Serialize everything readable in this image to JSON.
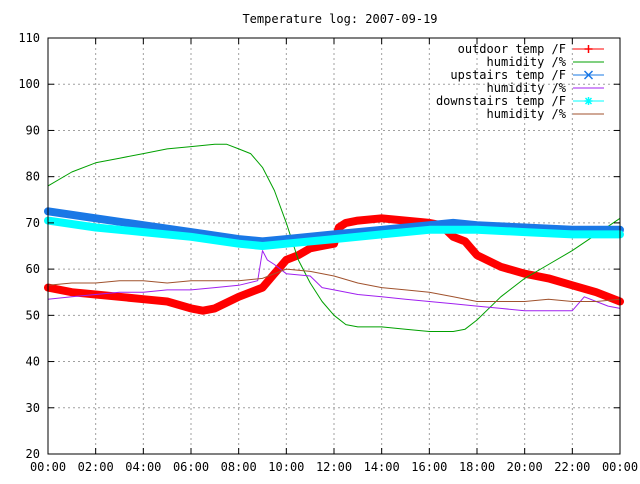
{
  "chart_data": {
    "type": "line",
    "title": "Temperature log: 2007-09-19",
    "xlabel": "",
    "ylabel": "",
    "x_unit": "hours",
    "xlim": [
      0,
      24
    ],
    "ylim": [
      20,
      110
    ],
    "grid": true,
    "legend_position": "top-right",
    "x_ticks": [
      {
        "value": 0,
        "label": "00:00"
      },
      {
        "value": 2,
        "label": "02:00"
      },
      {
        "value": 4,
        "label": "04:00"
      },
      {
        "value": 6,
        "label": "06:00"
      },
      {
        "value": 8,
        "label": "08:00"
      },
      {
        "value": 10,
        "label": "10:00"
      },
      {
        "value": 12,
        "label": "12:00"
      },
      {
        "value": 14,
        "label": "14:00"
      },
      {
        "value": 16,
        "label": "16:00"
      },
      {
        "value": 18,
        "label": "18:00"
      },
      {
        "value": 20,
        "label": "20:00"
      },
      {
        "value": 22,
        "label": "22:00"
      },
      {
        "value": 24,
        "label": "00:00"
      }
    ],
    "y_ticks": [
      20,
      30,
      40,
      50,
      60,
      70,
      80,
      90,
      100,
      110
    ],
    "series": [
      {
        "name": "outdoor temp /F",
        "color": "#ff0000",
        "style": "thick",
        "marker": "plus",
        "x": [
          0,
          1,
          2,
          3,
          4,
          5,
          6,
          6.5,
          7,
          8,
          9,
          9.5,
          10,
          10.5,
          11,
          11.5,
          12,
          12.2,
          12.5,
          13,
          14,
          15,
          16,
          16.5,
          17,
          17.5,
          18,
          19,
          20,
          21,
          22,
          23,
          24
        ],
        "y": [
          56,
          55,
          54.5,
          54,
          53.5,
          53,
          51.5,
          51,
          51.5,
          54,
          56,
          59,
          62,
          63,
          64.5,
          65,
          65.5,
          69,
          70,
          70.5,
          71,
          70.5,
          70,
          69.5,
          67,
          66,
          63,
          60.5,
          59,
          58,
          56.5,
          55,
          53
        ]
      },
      {
        "name": "humidity /%",
        "color": "#00a000",
        "style": "thin",
        "x": [
          0,
          1,
          2,
          3,
          4,
          5,
          6,
          7,
          7.5,
          8,
          8.5,
          9,
          9.5,
          10,
          10.5,
          11,
          11.5,
          12,
          12.5,
          13,
          14,
          15,
          16,
          17,
          17.5,
          18,
          19,
          20,
          21,
          22,
          23,
          24
        ],
        "y": [
          78,
          81,
          83,
          84,
          85,
          86,
          86.5,
          87,
          87,
          86,
          85,
          82,
          77,
          70,
          62,
          57,
          53,
          50,
          48,
          47.5,
          47.5,
          47,
          46.5,
          46.5,
          47,
          49,
          54,
          58,
          61,
          64,
          67.5,
          71
        ]
      },
      {
        "name": "upstairs temp /F",
        "color": "#1a78e6",
        "style": "thick",
        "marker": "x",
        "x": [
          0,
          2,
          4,
          6,
          8,
          9,
          10,
          12,
          14,
          16,
          17,
          18,
          20,
          22,
          24
        ],
        "y": [
          72.5,
          71,
          69.5,
          68,
          66.5,
          66,
          66.5,
          67.5,
          68.5,
          69.5,
          70,
          69.5,
          69,
          68.5,
          68.5
        ]
      },
      {
        "name": "humidity /%",
        "color": "#a020f0",
        "style": "thin",
        "x": [
          0,
          1,
          2,
          3,
          4,
          5,
          6,
          7,
          8,
          8.8,
          9,
          9.2,
          9.5,
          10,
          11,
          11.5,
          12,
          13,
          14,
          15,
          16,
          17,
          18,
          19,
          20,
          21,
          22,
          22.5,
          23,
          23.5,
          24
        ],
        "y": [
          53.5,
          54,
          54.5,
          55,
          55,
          55.5,
          55.5,
          56,
          56.5,
          57.5,
          64,
          62,
          61,
          59,
          58.5,
          56,
          55.5,
          54.5,
          54,
          53.5,
          53,
          52.5,
          52,
          51.5,
          51,
          51,
          51,
          54,
          53,
          52,
          51.5
        ]
      },
      {
        "name": "downstairs temp /F",
        "color": "#00ffff",
        "style": "thick",
        "marker": "star",
        "x": [
          0,
          2,
          4,
          6,
          8,
          9,
          10,
          12,
          14,
          16,
          17,
          18,
          20,
          22,
          24
        ],
        "y": [
          70.5,
          69,
          68,
          67,
          65.5,
          65,
          65.5,
          66.5,
          67.5,
          68.5,
          68.5,
          68.5,
          68,
          67.5,
          67.5
        ]
      },
      {
        "name": "humidity /%",
        "color": "#a0522d",
        "style": "thin",
        "x": [
          0,
          1,
          2,
          3,
          4,
          5,
          6,
          7,
          8,
          9,
          9.5,
          10,
          11,
          12,
          13,
          14,
          15,
          16,
          17,
          18,
          19,
          20,
          21,
          22,
          23,
          24
        ],
        "y": [
          56.5,
          57,
          57,
          57.5,
          57.5,
          57,
          57.5,
          57.5,
          57.5,
          58,
          59,
          60,
          59.5,
          58.5,
          57,
          56,
          55.5,
          55,
          54,
          53,
          53,
          53,
          53.5,
          53,
          53,
          53.5
        ]
      }
    ]
  }
}
